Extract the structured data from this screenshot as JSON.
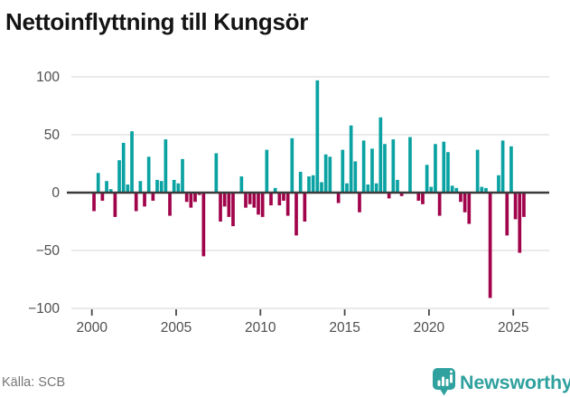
{
  "title": "Nettoinflyttning till Kungsör",
  "source": "Källa: SCB",
  "brand": {
    "name": "Newsworthy"
  },
  "colors": {
    "positive": "#0aa2a2",
    "negative": "#a1034b",
    "grid": "#e3e3e3",
    "zero_line": "#3b3b3b",
    "tick": "#4a4a4a",
    "axis_label": "#4f4f4f",
    "title_text": "#141414",
    "source_text": "#767676",
    "brand_teal": "#2fa19e"
  },
  "chart_data": {
    "type": "bar",
    "title": "Nettoinflyttning till Kungsör",
    "frequency": "quarterly",
    "start": "2000-Q1",
    "end": "2025-Q3",
    "ylim": [
      -100,
      100
    ],
    "grid": true,
    "ytick_labels": [
      "100",
      "50",
      "0",
      "−50",
      "−100"
    ],
    "yticks": [
      100,
      50,
      0,
      -50,
      -100
    ],
    "xtick_labels": [
      "2000",
      "2005",
      "2010",
      "2015",
      "2020",
      "2025"
    ],
    "xticks": [
      2000,
      2005,
      2010,
      2015,
      2020,
      2025
    ],
    "values": [
      -16,
      17,
      -7,
      10,
      3,
      -21,
      28,
      43,
      7,
      53,
      -16,
      10,
      -12,
      31,
      -7,
      11,
      10,
      46,
      -20,
      11,
      8,
      29,
      -8,
      -13,
      -8,
      -2,
      -55,
      0,
      0,
      34,
      -25,
      -12,
      -21,
      -29,
      0,
      14,
      -13,
      -10,
      -13,
      -19,
      -21,
      37,
      -11,
      4,
      -11,
      -7,
      -20,
      47,
      -37,
      18,
      -25,
      14,
      15,
      97,
      9,
      33,
      31,
      0,
      -9,
      37,
      8,
      58,
      27,
      -17,
      45,
      7,
      38,
      8,
      65,
      42,
      -5,
      46,
      11,
      -3,
      0,
      48,
      0,
      -7,
      -10,
      24,
      5,
      42,
      -20,
      44,
      35,
      6,
      4,
      -8,
      -17,
      -27,
      0,
      37,
      5,
      4,
      -91,
      0,
      15,
      45,
      -37,
      40,
      -23,
      -52,
      -21
    ]
  }
}
